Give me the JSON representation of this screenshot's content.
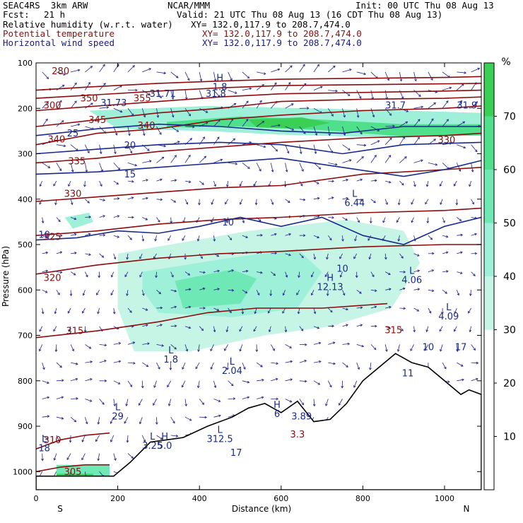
{
  "header": {
    "model": "SEAC4RS  3km ARW",
    "center": "NCAR/MMM",
    "init": "Init: 00 UTC Thu 08 Aug 13",
    "fcst_label": "Fcst:",
    "fcst_value": "21 h",
    "valid": "Valid: 21 UTC Thu 08 Aug 13 (16 CDT Thu 08 Aug 13)"
  },
  "fields": [
    {
      "name": "Relative humidity (w.r.t. water)",
      "xy": "XY= 132.0,117.9 to 208.7,474.0",
      "color": "#000000"
    },
    {
      "name": "Potential temperature",
      "xy": "XY= 132.0,117.9 to 208.7,474.0",
      "color": "#8b0d0d"
    },
    {
      "name": "Horizontal wind speed",
      "xy": "XY= 132.0,117.9 to 208.7,474.0",
      "color": "#1a1a80"
    }
  ],
  "chart_data": {
    "type": "heatmap",
    "title": "",
    "xlabel": "Distance (km)",
    "ylabel": "Pressure (hPa)",
    "xlim": [
      0,
      1090
    ],
    "ylim": [
      1040,
      100
    ],
    "x_ticks": [
      0,
      200,
      400,
      600,
      800,
      1000
    ],
    "y_ticks": [
      100,
      200,
      300,
      400,
      500,
      600,
      700,
      800,
      900,
      1000
    ],
    "x_end_labels": {
      "left": "S",
      "right": "N"
    },
    "colorbar": {
      "unit": "%",
      "ticks": [
        10,
        20,
        30,
        40,
        50,
        60,
        70
      ],
      "range": [
        0,
        80
      ],
      "colors": [
        {
          "from": 0,
          "to": 30,
          "color": "#ffffff"
        },
        {
          "from": 30,
          "to": 40,
          "color": "#c6f5e6"
        },
        {
          "from": 40,
          "to": 50,
          "color": "#9ef0d8"
        },
        {
          "from": 50,
          "to": 60,
          "color": "#6ee8b4"
        },
        {
          "from": 60,
          "to": 70,
          "color": "#4ee08a"
        },
        {
          "from": 70,
          "to": 80,
          "color": "#3ad055"
        }
      ]
    },
    "rh_regions": [
      {
        "level": 50,
        "points": [
          [
            50,
            985
          ],
          [
            180,
            985
          ],
          [
            180,
            1030
          ],
          [
            50,
            1030
          ]
        ]
      },
      {
        "level": 70,
        "points": [
          [
            50,
            1005
          ],
          [
            140,
            1005
          ],
          [
            140,
            1030
          ],
          [
            50,
            1030
          ]
        ]
      },
      {
        "level": 40,
        "points": [
          [
            70,
            440
          ],
          [
            130,
            430
          ],
          [
            140,
            450
          ],
          [
            90,
            465
          ]
        ]
      },
      {
        "level": 40,
        "points": [
          [
            130,
            205
          ],
          [
            420,
            195
          ],
          [
            900,
            205
          ],
          [
            1090,
            210
          ],
          [
            1090,
            255
          ],
          [
            900,
            265
          ],
          [
            600,
            258
          ],
          [
            420,
            250
          ],
          [
            200,
            245
          ]
        ]
      },
      {
        "level": 60,
        "points": [
          [
            320,
            230
          ],
          [
            500,
            218
          ],
          [
            700,
            225
          ],
          [
            900,
            235
          ],
          [
            1090,
            235
          ],
          [
            1090,
            260
          ],
          [
            900,
            262
          ],
          [
            700,
            248
          ],
          [
            500,
            240
          ],
          [
            320,
            242
          ]
        ]
      },
      {
        "level": 70,
        "points": [
          [
            520,
            225
          ],
          [
            650,
            220
          ],
          [
            720,
            232
          ],
          [
            650,
            245
          ],
          [
            540,
            242
          ]
        ]
      },
      {
        "level": 30,
        "points": [
          [
            200,
            520
          ],
          [
            520,
            470
          ],
          [
            760,
            445
          ],
          [
            900,
            470
          ],
          [
            940,
            540
          ],
          [
            870,
            640
          ],
          [
            720,
            680
          ],
          [
            560,
            700
          ],
          [
            380,
            735
          ],
          [
            240,
            735
          ],
          [
            200,
            640
          ]
        ]
      },
      {
        "level": 40,
        "points": [
          [
            260,
            560
          ],
          [
            470,
            530
          ],
          [
            640,
            510
          ],
          [
            700,
            560
          ],
          [
            640,
            640
          ],
          [
            480,
            660
          ],
          [
            300,
            650
          ],
          [
            260,
            600
          ]
        ]
      },
      {
        "level": 50,
        "points": [
          [
            340,
            580
          ],
          [
            480,
            555
          ],
          [
            540,
            575
          ],
          [
            500,
            630
          ],
          [
            360,
            640
          ]
        ]
      }
    ],
    "terrain": [
      [
        0,
        1010
      ],
      [
        190,
        1010
      ],
      [
        230,
        980
      ],
      [
        280,
        935
      ],
      [
        320,
        930
      ],
      [
        360,
        925
      ],
      [
        420,
        900
      ],
      [
        480,
        880
      ],
      [
        520,
        860
      ],
      [
        560,
        850
      ],
      [
        600,
        870
      ],
      [
        640,
        845
      ],
      [
        680,
        890
      ],
      [
        720,
        885
      ],
      [
        760,
        850
      ],
      [
        800,
        800
      ],
      [
        840,
        770
      ],
      [
        880,
        740
      ],
      [
        920,
        760
      ],
      [
        960,
        770
      ],
      [
        1000,
        800
      ],
      [
        1040,
        830
      ],
      [
        1060,
        820
      ],
      [
        1090,
        830
      ],
      [
        1090,
        1040
      ],
      [
        0,
        1040
      ]
    ],
    "theta_contours": [
      {
        "value": 305,
        "points": [
          [
            0,
            1000
          ],
          [
            60,
            990
          ],
          [
            120,
            985
          ],
          [
            180,
            985
          ]
        ]
      },
      {
        "value": 310,
        "points": [
          [
            0,
            950
          ],
          [
            60,
            930
          ],
          [
            120,
            920
          ],
          [
            180,
            915
          ]
        ]
      },
      {
        "value": 315,
        "points": [
          [
            0,
            705
          ],
          [
            150,
            690
          ],
          [
            300,
            670
          ],
          [
            420,
            650
          ],
          [
            540,
            640
          ],
          [
            700,
            640
          ],
          [
            860,
            630
          ]
        ]
      },
      {
        "value": 320,
        "points": [
          [
            0,
            565
          ],
          [
            150,
            545
          ],
          [
            300,
            530
          ],
          [
            450,
            520
          ],
          [
            600,
            515
          ],
          [
            800,
            505
          ],
          [
            1000,
            500
          ],
          [
            1090,
            500
          ]
        ]
      },
      {
        "value": 325,
        "points": [
          [
            0,
            480
          ],
          [
            150,
            470
          ],
          [
            300,
            455
          ],
          [
            450,
            445
          ],
          [
            600,
            440
          ],
          [
            800,
            430
          ],
          [
            1000,
            425
          ],
          [
            1090,
            420
          ]
        ]
      },
      {
        "value": 330,
        "points": [
          [
            0,
            405
          ],
          [
            150,
            395
          ],
          [
            300,
            385
          ],
          [
            450,
            375
          ],
          [
            600,
            370
          ],
          [
            800,
            345
          ],
          [
            1000,
            335
          ],
          [
            1090,
            330
          ]
        ]
      },
      {
        "value": 335,
        "points": [
          [
            0,
            320
          ],
          [
            150,
            310
          ],
          [
            300,
            295
          ],
          [
            450,
            285
          ],
          [
            600,
            275
          ],
          [
            800,
            265
          ],
          [
            1000,
            260
          ],
          [
            1090,
            255
          ]
        ]
      },
      {
        "value": 340,
        "points": [
          [
            0,
            280
          ],
          [
            150,
            255
          ],
          [
            300,
            245
          ],
          [
            450,
            225
          ],
          [
            600,
            215
          ],
          [
            800,
            205
          ],
          [
            1000,
            200
          ],
          [
            1090,
            195
          ]
        ]
      },
      {
        "value": 345,
        "points": [
          [
            0,
            240
          ],
          [
            150,
            225
          ],
          [
            300,
            210
          ],
          [
            450,
            200
          ],
          [
            600,
            185
          ],
          [
            800,
            180
          ],
          [
            1000,
            178
          ],
          [
            1090,
            175
          ]
        ]
      },
      {
        "value": 350,
        "points": [
          [
            0,
            205
          ],
          [
            150,
            195
          ],
          [
            300,
            185
          ],
          [
            450,
            175
          ],
          [
            600,
            168
          ],
          [
            800,
            165
          ],
          [
            1000,
            162
          ],
          [
            1090,
            160
          ]
        ]
      },
      {
        "value": 355,
        "points": [
          [
            0,
            178
          ],
          [
            150,
            170
          ],
          [
            300,
            162
          ],
          [
            450,
            155
          ],
          [
            600,
            150
          ],
          [
            800,
            148
          ],
          [
            1000,
            146
          ],
          [
            1090,
            145
          ]
        ]
      },
      {
        "value": 360,
        "points": [
          [
            0,
            160
          ],
          [
            150,
            152
          ],
          [
            300,
            145
          ],
          [
            450,
            140
          ],
          [
            600,
            136
          ],
          [
            800,
            134
          ],
          [
            1000,
            132
          ],
          [
            1090,
            130
          ]
        ]
      }
    ],
    "theta_labels": [
      {
        "text": "280",
        "x": 60,
        "p": 125
      },
      {
        "text": "300",
        "x": 40,
        "p": 200
      },
      {
        "text": "350",
        "x": 130,
        "p": 185
      },
      {
        "text": "355",
        "x": 260,
        "p": 185
      },
      {
        "text": "345",
        "x": 150,
        "p": 232
      },
      {
        "text": "340",
        "x": 50,
        "p": 275
      },
      {
        "text": "340",
        "x": 270,
        "p": 245
      },
      {
        "text": "335",
        "x": 100,
        "p": 323
      },
      {
        "text": "330",
        "x": 90,
        "p": 395
      },
      {
        "text": "325",
        "x": 40,
        "p": 490
      },
      {
        "text": "320",
        "x": 40,
        "p": 580
      },
      {
        "text": "315",
        "x": 95,
        "p": 697
      },
      {
        "text": "315",
        "x": 875,
        "p": 695
      },
      {
        "text": "310",
        "x": 40,
        "p": 937
      },
      {
        "text": "305",
        "x": 90,
        "p": 1007
      },
      {
        "text": "330",
        "x": 1005,
        "p": 277
      },
      {
        "text": "3.3",
        "x": 640,
        "p": 925
      }
    ],
    "wind_contours": [
      {
        "value": 25,
        "points": [
          [
            0,
            260
          ],
          [
            150,
            245
          ],
          [
            300,
            235
          ],
          [
            450,
            240
          ],
          [
            600,
            250
          ],
          [
            750,
            255
          ],
          [
            900,
            240
          ],
          [
            1090,
            240
          ]
        ]
      },
      {
        "value": 20,
        "points": [
          [
            0,
            300
          ],
          [
            150,
            290
          ],
          [
            300,
            280
          ],
          [
            450,
            275
          ],
          [
            600,
            280
          ],
          [
            750,
            300
          ],
          [
            900,
            280
          ],
          [
            1090,
            275
          ]
        ]
      },
      {
        "value": 15,
        "points": [
          [
            0,
            345
          ],
          [
            150,
            340
          ],
          [
            300,
            330
          ],
          [
            450,
            320
          ],
          [
            600,
            310
          ],
          [
            750,
            330
          ],
          [
            900,
            350
          ],
          [
            1000,
            335
          ],
          [
            1090,
            315
          ]
        ]
      },
      {
        "value": 10,
        "points": [
          [
            0,
            490
          ],
          [
            100,
            485
          ],
          [
            200,
            470
          ],
          [
            300,
            475
          ],
          [
            400,
            460
          ],
          [
            500,
            440
          ],
          [
            600,
            460
          ],
          [
            700,
            440
          ],
          [
            800,
            480
          ],
          [
            900,
            500
          ],
          [
            1000,
            460
          ],
          [
            1090,
            440
          ]
        ]
      }
    ],
    "wind_labels": [
      {
        "text": "25",
        "x": 90,
        "p": 262
      },
      {
        "text": "20",
        "x": 230,
        "p": 288
      },
      {
        "text": "15",
        "x": 230,
        "p": 352
      },
      {
        "text": "10",
        "x": 20,
        "p": 485
      },
      {
        "text": "10",
        "x": 470,
        "p": 458
      },
      {
        "text": "10",
        "x": 750,
        "p": 560
      },
      {
        "text": "10",
        "x": 960,
        "p": 733
      },
      {
        "text": "17",
        "x": 1040,
        "p": 733
      },
      {
        "text": "11",
        "x": 910,
        "p": 790
      },
      {
        "text": "17",
        "x": 490,
        "p": 965
      },
      {
        "text": "31.73",
        "x": 190,
        "p": 195
      },
      {
        "text": "31.71",
        "x": 310,
        "p": 175
      },
      {
        "text": "31.8",
        "x": 440,
        "p": 175
      },
      {
        "text": "31.7",
        "x": 880,
        "p": 200
      },
      {
        "text": "31.9",
        "x": 1055,
        "p": 200
      }
    ],
    "extrema": [
      {
        "kind": "L",
        "value": "6.44",
        "x": 780,
        "p": 415
      },
      {
        "kind": "H",
        "value": "12.13",
        "x": 720,
        "p": 600
      },
      {
        "kind": "L",
        "value": "4.06",
        "x": 920,
        "p": 585
      },
      {
        "kind": "L",
        "value": "4.09",
        "x": 1010,
        "p": 665
      },
      {
        "kind": "L",
        "value": "1.8",
        "x": 330,
        "p": 760
      },
      {
        "kind": "L",
        "value": "2.04",
        "x": 480,
        "p": 785
      },
      {
        "kind": "L",
        "value": "29",
        "x": 200,
        "p": 885
      },
      {
        "kind": "H",
        "value": "6",
        "x": 590,
        "p": 880
      },
      {
        "kind": "",
        "value": "3.89",
        "x": 650,
        "p": 885
      },
      {
        "kind": "L",
        "value": "3.25",
        "x": 285,
        "p": 950
      },
      {
        "kind": "H",
        "value": "5.0",
        "x": 315,
        "p": 950
      },
      {
        "kind": "L",
        "value": "312.5",
        "x": 450,
        "p": 935
      },
      {
        "kind": "L",
        "value": "18",
        "x": 20,
        "p": 955
      },
      {
        "kind": "H",
        "value": "1.8",
        "x": 450,
        "p": 160
      }
    ],
    "wind_vectors_note": "Wind vector field arrows (direction and magnitude) plotted on a regular grid"
  }
}
